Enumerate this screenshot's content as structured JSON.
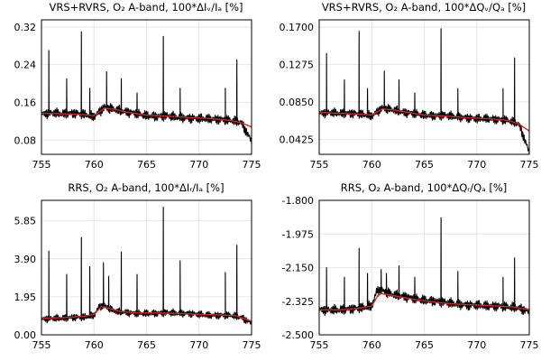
{
  "chart_data": [
    {
      "type": "line",
      "title": "VRS+RVRS, O₂ A-band, 100*ΔIᵥ/Iₐ [%]",
      "xlim": [
        755,
        775
      ],
      "ylim": [
        0.05,
        0.335
      ],
      "xticks": [
        755,
        760,
        765,
        770,
        775
      ],
      "yticks": [
        0.08,
        0.16,
        0.24,
        0.32
      ],
      "ytick_labels": [
        "0.08",
        "0.16",
        "0.24",
        "0.32"
      ],
      "grid": true,
      "series": [
        {
          "color": "#000000",
          "x": [
            755.0,
            756.0,
            757.0,
            758.0,
            759.0,
            760.0,
            761.0,
            762.0,
            763.0,
            764.0,
            765.0,
            766.0,
            767.0,
            768.0,
            769.0,
            770.0,
            771.0,
            772.0,
            773.0,
            774.0,
            775.0
          ],
          "y": [
            0.135,
            0.138,
            0.136,
            0.137,
            0.135,
            0.13,
            0.15,
            0.145,
            0.14,
            0.137,
            0.132,
            0.13,
            0.132,
            0.128,
            0.127,
            0.126,
            0.125,
            0.124,
            0.122,
            0.118,
            0.078
          ],
          "noise": 0.012,
          "spikes": [
            [
              755.7,
              0.27
            ],
            [
              757.4,
              0.21
            ],
            [
              758.8,
              0.31
            ],
            [
              759.6,
              0.19
            ],
            [
              761.2,
              0.225
            ],
            [
              762.6,
              0.21
            ],
            [
              764.1,
              0.18
            ],
            [
              766.6,
              0.3
            ],
            [
              768.2,
              0.19
            ],
            [
              772.5,
              0.19
            ],
            [
              773.6,
              0.25
            ]
          ]
        },
        {
          "color": "#d62728",
          "x": [
            755.0,
            757.0,
            759.0,
            760.0,
            761.0,
            762.0,
            763.0,
            765.0,
            767.0,
            769.0,
            771.0,
            773.0,
            774.0,
            775.0
          ],
          "y": [
            0.137,
            0.136,
            0.134,
            0.132,
            0.148,
            0.145,
            0.14,
            0.133,
            0.131,
            0.128,
            0.126,
            0.122,
            0.117,
            0.108
          ]
        }
      ]
    },
    {
      "type": "line",
      "title": "VRS+RVRS, O₂ A-band, 100*ΔQᵥ/Qₐ [%]",
      "xlim": [
        755,
        775
      ],
      "ylim": [
        0.0255,
        0.178
      ],
      "xticks": [
        755,
        760,
        765,
        770,
        775
      ],
      "yticks": [
        0.0425,
        0.085,
        0.1275,
        0.17
      ],
      "ytick_labels": [
        "0.0425",
        "0.0850",
        "0.1275",
        "0.1700"
      ],
      "grid": true,
      "series": [
        {
          "color": "#000000",
          "x": [
            755.0,
            756.0,
            757.0,
            758.0,
            759.0,
            760.0,
            761.0,
            762.0,
            763.0,
            764.0,
            765.0,
            766.0,
            767.0,
            768.0,
            769.0,
            770.0,
            771.0,
            772.0,
            773.0,
            774.0,
            775.0
          ],
          "y": [
            0.072,
            0.073,
            0.072,
            0.072,
            0.071,
            0.069,
            0.078,
            0.076,
            0.073,
            0.072,
            0.07,
            0.069,
            0.07,
            0.068,
            0.067,
            0.066,
            0.066,
            0.065,
            0.064,
            0.06,
            0.028
          ],
          "noise": 0.006,
          "spikes": [
            [
              755.7,
              0.14
            ],
            [
              757.4,
              0.11
            ],
            [
              758.8,
              0.165
            ],
            [
              759.6,
              0.1
            ],
            [
              761.2,
              0.12
            ],
            [
              762.6,
              0.11
            ],
            [
              764.1,
              0.095
            ],
            [
              766.6,
              0.168
            ],
            [
              768.2,
              0.1
            ],
            [
              772.5,
              0.1
            ],
            [
              773.6,
              0.135
            ]
          ]
        },
        {
          "color": "#d62728",
          "x": [
            755.0,
            757.0,
            759.0,
            760.0,
            761.0,
            762.0,
            763.0,
            765.0,
            767.0,
            769.0,
            771.0,
            773.0,
            774.0,
            775.0
          ],
          "y": [
            0.073,
            0.072,
            0.071,
            0.07,
            0.077,
            0.076,
            0.074,
            0.07,
            0.069,
            0.067,
            0.066,
            0.064,
            0.06,
            0.052
          ]
        }
      ]
    },
    {
      "type": "line",
      "title": "RRS, O₂ A-band, 100*ΔIᵣ/Iₐ [%]",
      "xlim": [
        755,
        775
      ],
      "ylim": [
        0.0,
        6.9
      ],
      "xticks": [
        755,
        760,
        765,
        770,
        775
      ],
      "yticks": [
        0.0,
        1.95,
        3.9,
        5.85
      ],
      "ytick_labels": [
        "0.00",
        "1.95",
        "3.90",
        "5.85"
      ],
      "grid": true,
      "series": [
        {
          "color": "#000000",
          "x": [
            755.0,
            756.0,
            757.0,
            758.0,
            759.0,
            760.0,
            760.5,
            761.0,
            762.0,
            763.0,
            764.0,
            765.0,
            766.0,
            767.0,
            768.0,
            769.0,
            770.0,
            771.0,
            772.0,
            773.0,
            774.0,
            775.0
          ],
          "y": [
            0.8,
            0.85,
            0.85,
            0.9,
            0.9,
            1.0,
            1.45,
            1.5,
            1.2,
            1.15,
            1.1,
            1.1,
            1.1,
            1.15,
            1.1,
            1.1,
            1.05,
            1.0,
            1.0,
            1.0,
            0.9,
            0.6
          ],
          "noise": 0.22,
          "spikes": [
            [
              755.7,
              4.3
            ],
            [
              757.4,
              3.1
            ],
            [
              758.8,
              5.0
            ],
            [
              759.6,
              3.5
            ],
            [
              760.9,
              3.7
            ],
            [
              761.4,
              3.0
            ],
            [
              762.6,
              4.25
            ],
            [
              764.1,
              3.1
            ],
            [
              766.6,
              6.55
            ],
            [
              768.2,
              3.8
            ],
            [
              772.5,
              3.2
            ],
            [
              773.6,
              4.6
            ]
          ]
        },
        {
          "color": "#d62728",
          "x": [
            755.0,
            757.0,
            759.0,
            760.0,
            760.7,
            761.5,
            762.5,
            764.0,
            766.0,
            768.0,
            770.0,
            772.0,
            773.5,
            775.0
          ],
          "y": [
            0.85,
            0.88,
            0.95,
            1.05,
            1.45,
            1.35,
            1.2,
            1.12,
            1.12,
            1.1,
            1.05,
            1.02,
            0.98,
            0.7
          ]
        }
      ]
    },
    {
      "type": "line",
      "title": "RRS, O₂ A-band, 100*ΔQᵣ/Qₐ [%]",
      "xlim": [
        755,
        775
      ],
      "ylim": [
        -2.5,
        -1.8
      ],
      "xticks": [
        755,
        760,
        765,
        770,
        775
      ],
      "yticks": [
        -2.5,
        -2.325,
        -2.15,
        -1.975,
        -1.8
      ],
      "ytick_labels": [
        "-2.500",
        "-2.325",
        "-2.150",
        "-1.975",
        "-1.800"
      ],
      "grid": true,
      "series": [
        {
          "color": "#000000",
          "x": [
            755.0,
            756.0,
            757.0,
            758.0,
            759.0,
            760.0,
            760.5,
            761.0,
            762.0,
            763.0,
            764.0,
            765.0,
            766.0,
            767.0,
            768.0,
            769.0,
            770.0,
            771.0,
            772.0,
            773.0,
            774.0,
            775.0
          ],
          "y": [
            -2.37,
            -2.37,
            -2.37,
            -2.365,
            -2.36,
            -2.35,
            -2.27,
            -2.27,
            -2.29,
            -2.3,
            -2.31,
            -2.32,
            -2.325,
            -2.33,
            -2.34,
            -2.345,
            -2.345,
            -2.35,
            -2.35,
            -2.355,
            -2.36,
            -2.38
          ],
          "noise": 0.03,
          "spikes": [
            [
              755.7,
              -2.15
            ],
            [
              757.4,
              -2.2
            ],
            [
              758.8,
              -2.05
            ],
            [
              759.6,
              -2.18
            ],
            [
              760.9,
              -2.16
            ],
            [
              761.4,
              -2.18
            ],
            [
              762.6,
              -2.14
            ],
            [
              764.1,
              -2.2
            ],
            [
              766.6,
              -1.89
            ],
            [
              768.2,
              -2.17
            ],
            [
              772.5,
              -2.2
            ],
            [
              773.6,
              -2.1
            ]
          ]
        },
        {
          "color": "#d62728",
          "x": [
            755.0,
            757.0,
            759.0,
            760.0,
            760.7,
            761.5,
            762.5,
            764.0,
            766.0,
            768.0,
            770.0,
            772.0,
            773.5,
            775.0
          ],
          "y": [
            -2.37,
            -2.37,
            -2.36,
            -2.35,
            -2.285,
            -2.29,
            -2.3,
            -2.315,
            -2.33,
            -2.34,
            -2.345,
            -2.35,
            -2.355,
            -2.37
          ]
        }
      ]
    }
  ]
}
